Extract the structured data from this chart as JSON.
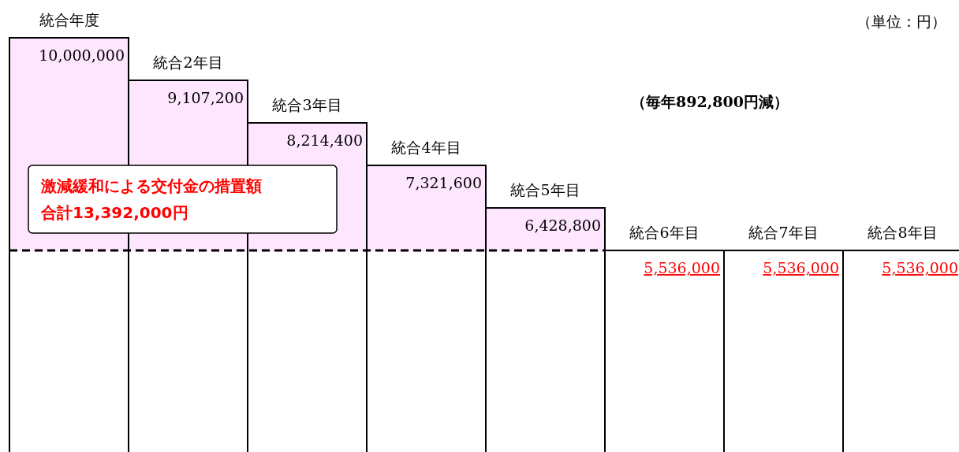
{
  "chart_data": {
    "type": "bar",
    "categories": [
      "統合年度",
      "統合2年目",
      "統合3年目",
      "統合4年目",
      "統合5年目",
      "統合6年目",
      "統合7年目",
      "統合8年目"
    ],
    "values": [
      10000000,
      9107200,
      8214400,
      7321600,
      6428800,
      5536000,
      5536000,
      5536000
    ],
    "color": "#ffe6ff",
    "value_labels": [
      "10,000,000",
      "9,107,200",
      "8,214,400",
      "7,321,600",
      "6,428,800",
      "5,536,000",
      "5,536,000",
      "5,536,000"
    ],
    "bands": [
      {
        "axis": "y",
        "from": 0,
        "to": 5536000,
        "color": "#ffffff"
      }
    ],
    "ref_lines": [
      {
        "axis": "y",
        "value": 5536000,
        "line_style": "dashed",
        "color": "#000000"
      }
    ],
    "annotations": [
      "（単位：円）",
      "（毎年892,800円減）",
      "激減緩和による交付金の措置額",
      "合計13,392,000円"
    ]
  }
}
